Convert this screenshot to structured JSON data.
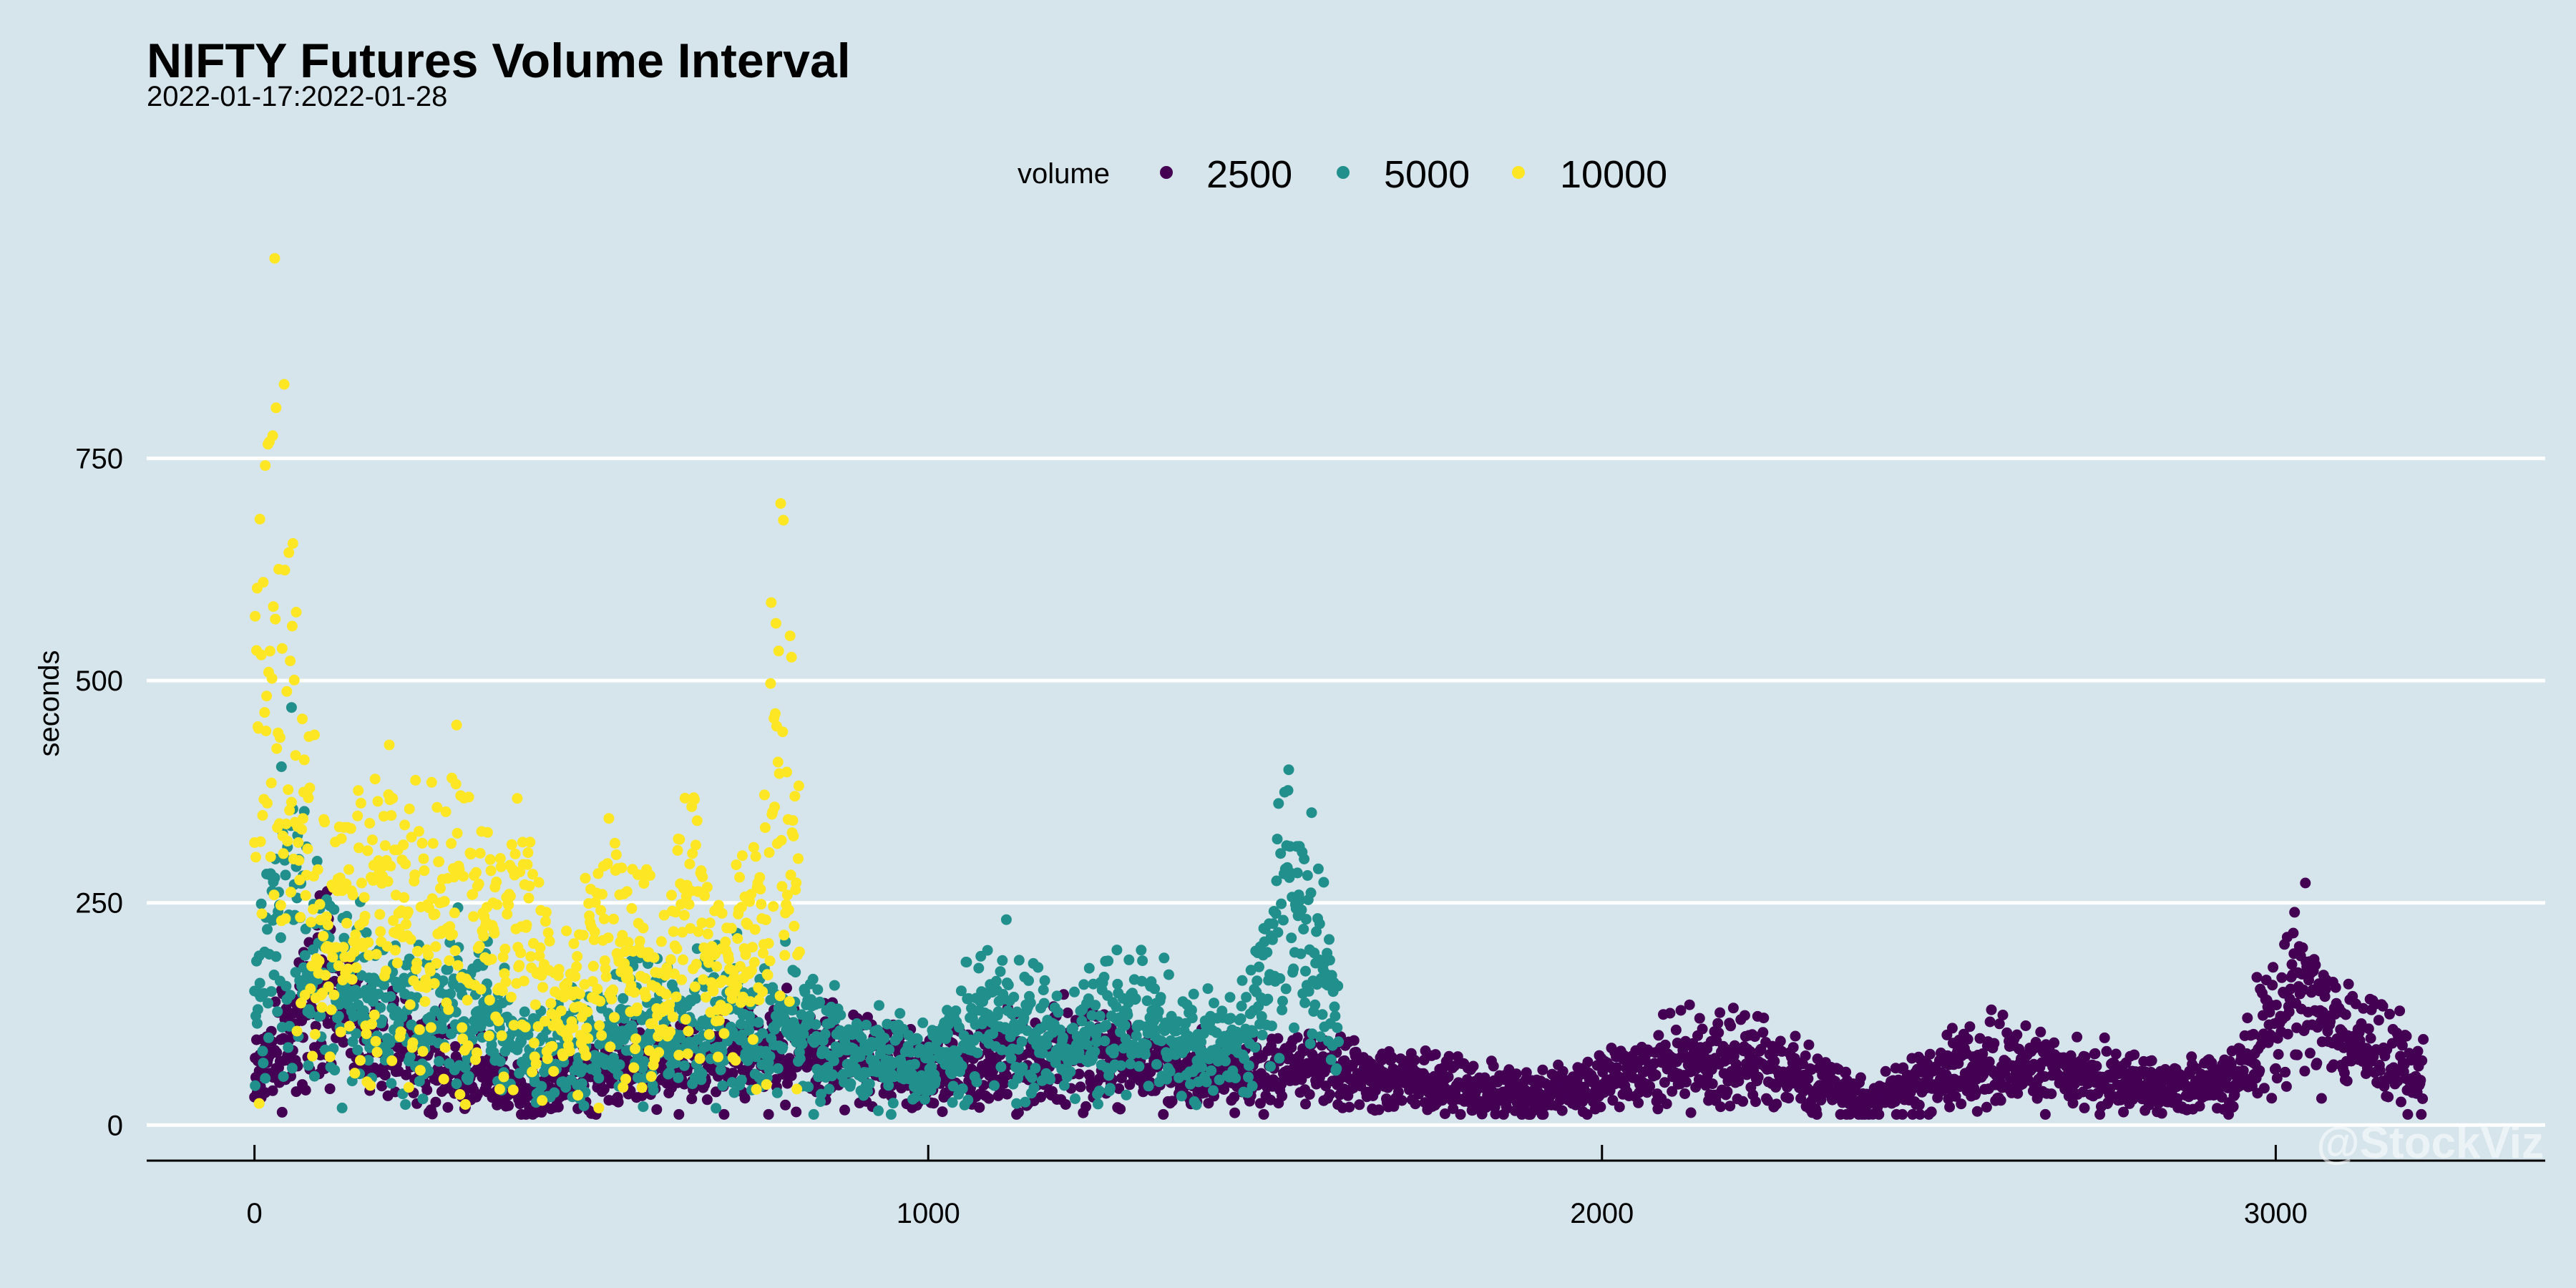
{
  "chart_data": {
    "type": "scatter",
    "title": "NIFTY Futures Volume Interval",
    "subtitle": "2022-01-17:2022-01-28",
    "xlabel": "",
    "ylabel": "seconds",
    "xlim": [
      -160,
      3400
    ],
    "ylim": [
      -40,
      1000
    ],
    "x_ticks": [
      0,
      1000,
      2000,
      3000
    ],
    "y_ticks": [
      0,
      250,
      500,
      750
    ],
    "grid": "horizontal major lines only",
    "legend": {
      "title": "volume",
      "position": "top",
      "entries": [
        "2500",
        "5000",
        "10000"
      ]
    },
    "watermark": "@StockViz",
    "series": [
      {
        "name": "2500",
        "color": "#440154",
        "x_range": [
          0,
          3220
        ],
        "count": 3220,
        "profile": [
          [
            0,
            60
          ],
          [
            100,
            150
          ],
          [
            200,
            90
          ],
          [
            400,
            40
          ],
          [
            600,
            70
          ],
          [
            800,
            85
          ],
          [
            1000,
            60
          ],
          [
            1200,
            80
          ],
          [
            1400,
            60
          ],
          [
            1600,
            60
          ],
          [
            1800,
            40
          ],
          [
            1950,
            35
          ],
          [
            2100,
            70
          ],
          [
            2200,
            80
          ],
          [
            2300,
            50
          ],
          [
            2400,
            30
          ],
          [
            2500,
            60
          ],
          [
            2600,
            70
          ],
          [
            2700,
            55
          ],
          [
            2850,
            40
          ],
          [
            2950,
            55
          ],
          [
            3030,
            160
          ],
          [
            3100,
            100
          ],
          [
            3220,
            55
          ]
        ]
      },
      {
        "name": "5000",
        "color": "#21908c",
        "x_range": [
          0,
          1610
        ],
        "count": 1610,
        "profile": [
          [
            0,
            150
          ],
          [
            50,
            260
          ],
          [
            100,
            170
          ],
          [
            200,
            110
          ],
          [
            300,
            130
          ],
          [
            400,
            90
          ],
          [
            500,
            90
          ],
          [
            600,
            120
          ],
          [
            700,
            120
          ],
          [
            800,
            110
          ],
          [
            900,
            80
          ],
          [
            1000,
            70
          ],
          [
            1100,
            130
          ],
          [
            1200,
            85
          ],
          [
            1300,
            120
          ],
          [
            1400,
            80
          ],
          [
            1480,
            100
          ],
          [
            1530,
            250
          ],
          [
            1560,
            210
          ],
          [
            1610,
            110
          ]
        ]
      },
      {
        "name": "10000",
        "color": "#fde725",
        "x_range": [
          0,
          810
        ],
        "count": 810,
        "profile": [
          [
            0,
            300
          ],
          [
            30,
            550
          ],
          [
            60,
            380
          ],
          [
            100,
            200
          ],
          [
            150,
            250
          ],
          [
            200,
            260
          ],
          [
            250,
            200
          ],
          [
            300,
            250
          ],
          [
            350,
            200
          ],
          [
            400,
            220
          ],
          [
            450,
            130
          ],
          [
            500,
            170
          ],
          [
            550,
            230
          ],
          [
            600,
            130
          ],
          [
            650,
            240
          ],
          [
            700,
            140
          ],
          [
            760,
            270
          ],
          [
            780,
            400
          ],
          [
            810,
            210
          ]
        ]
      }
    ]
  }
}
